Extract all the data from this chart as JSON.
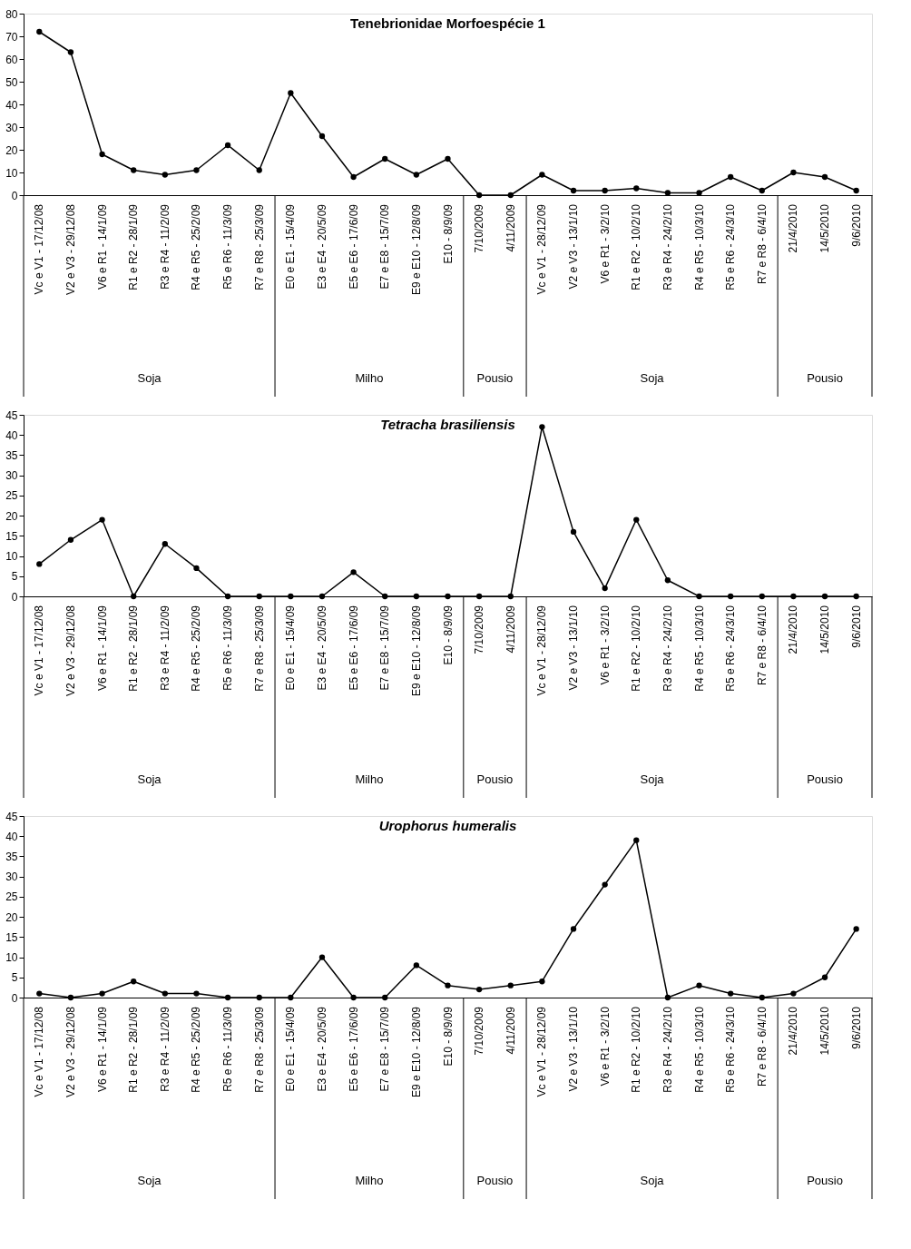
{
  "chart_data": [
    {
      "type": "line",
      "title": "Tenebrionidae Morfoespécie 1",
      "categories": [
        "Vc e V1 - 17/12/08",
        "V2 e V3 - 29/12/08",
        "V6 e R1 - 14/1/09",
        "R1 e R2 - 28/1/09",
        "R3 e R4 - 11/2/09",
        "R4 e R5 - 25/2/09",
        "R5 e R6 - 11/3/09",
        "R7 e R8 - 25/3/09",
        "E0 e E1 - 15/4/09",
        "E3 e E4 - 20/5/09",
        "E5 e E6 - 17/6/09",
        "E7 e E8 - 15/7/09",
        "E9 e E10 - 12/8/09",
        "E10 - 8/9/09",
        "7/10/2009",
        "4/11/2009",
        "Vc e V1 - 28/12/09",
        "V2 e V3 - 13/1/10",
        "V6 e R1 - 3/2/10",
        "R1 e R2 - 10/2/10",
        "R3 e R4 - 24/2/10",
        "R4 e R5 - 10/3/10",
        "R5 e R6 - 24/3/10",
        "R7 e R8 - 6/4/10",
        "21/4/2010",
        "14/5/2010",
        "9/6/2010"
      ],
      "values": [
        72,
        63,
        18,
        11,
        9,
        11,
        22,
        11,
        45,
        26,
        8,
        16,
        9,
        16,
        0,
        0,
        9,
        2,
        2,
        3,
        1,
        1,
        8,
        2,
        10,
        8,
        2
      ],
      "color": "#000000",
      "marker": "circle",
      "line_style": "solid",
      "ylim": [
        0,
        80
      ],
      "yticks": [
        0,
        10,
        20,
        30,
        40,
        50,
        60,
        70,
        80
      ],
      "annotations": [
        "Soja",
        "Milho",
        "Pousio",
        "Soja",
        "Pousio"
      ]
    },
    {
      "type": "line",
      "title": "Tetracha brasiliensis",
      "categories": [
        "Vc e V1 - 17/12/08",
        "V2 e V3 - 29/12/08",
        "V6 e R1 - 14/1/09",
        "R1 e R2 - 28/1/09",
        "R3 e R4 - 11/2/09",
        "R4 e R5 - 25/2/09",
        "R5 e R6 - 11/3/09",
        "R7 e R8 - 25/3/09",
        "E0 e E1 - 15/4/09",
        "E3 e E4 - 20/5/09",
        "E5 e E6 - 17/6/09",
        "E7 e E8 - 15/7/09",
        "E9 e E10 - 12/8/09",
        "E10 - 8/9/09",
        "7/10/2009",
        "4/11/2009",
        "Vc e V1 - 28/12/09",
        "V2 e V3 - 13/1/10",
        "V6 e R1 - 3/2/10",
        "R1 e R2 - 10/2/10",
        "R3 e R4 - 24/2/10",
        "R4 e R5 - 10/3/10",
        "R5 e R6 - 24/3/10",
        "R7 e R8 - 6/4/10",
        "21/4/2010",
        "14/5/2010",
        "9/6/2010"
      ],
      "values": [
        8,
        14,
        19,
        0,
        13,
        7,
        0,
        0,
        0,
        0,
        6,
        0,
        0,
        0,
        0,
        0,
        42,
        16,
        2,
        19,
        4,
        0,
        0,
        0,
        0,
        0,
        0
      ],
      "color": "#000000",
      "marker": "circle",
      "line_style": "solid",
      "ylim": [
        0,
        45
      ],
      "yticks": [
        0,
        5,
        10,
        15,
        20,
        25,
        30,
        35,
        40,
        45
      ],
      "annotations": [
        "Soja",
        "Milho",
        "Pousio",
        "Soja",
        "Pousio"
      ]
    },
    {
      "type": "line",
      "title": "Urophorus  humeralis",
      "categories": [
        "Vc e V1 - 17/12/08",
        "V2 e V3 - 29/12/08",
        "V6 e R1 - 14/1/09",
        "R1 e R2 - 28/1/09",
        "R3 e R4 - 11/2/09",
        "R4 e R5 - 25/2/09",
        "R5 e R6 - 11/3/09",
        "R7 e R8 - 25/3/09",
        "E0 e E1 - 15/4/09",
        "E3 e E4 - 20/5/09",
        "E5 e E6 - 17/6/09",
        "E7 e E8 - 15/7/09",
        "E9 e E10 - 12/8/09",
        "E10 - 8/9/09",
        "7/10/2009",
        "4/11/2009",
        "Vc e V1 - 28/12/09",
        "V2 e V3 - 13/1/10",
        "V6 e R1 - 3/2/10",
        "R1 e R2 - 10/2/10",
        "R3 e R4 - 24/2/10",
        "R4 e R5 - 10/3/10",
        "R5 e R6 - 24/3/10",
        "R7 e R8 - 6/4/10",
        "21/4/2010",
        "14/5/2010",
        "9/6/2010"
      ],
      "values": [
        1,
        0,
        1,
        4,
        1,
        1,
        0,
        0,
        0,
        10,
        0,
        0,
        8,
        3,
        2,
        3,
        4,
        17,
        28,
        39,
        0,
        3,
        1,
        0,
        1,
        5,
        17
      ],
      "color": "#000000",
      "marker": "circle",
      "line_style": "solid",
      "ylim": [
        0,
        45
      ],
      "yticks": [
        0,
        5,
        10,
        15,
        20,
        25,
        30,
        35,
        40,
        45
      ],
      "annotations": [
        "Soja",
        "Milho",
        "Pousio",
        "Soja",
        "Pousio"
      ]
    }
  ]
}
